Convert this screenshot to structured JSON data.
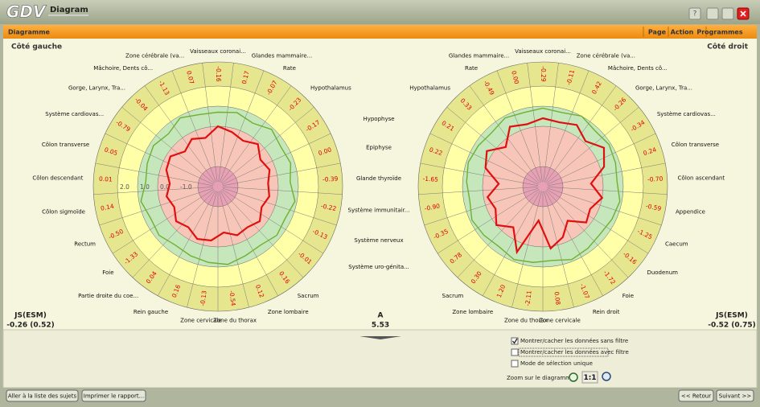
{
  "window": {
    "logo": "GDV",
    "title": "Diagram"
  },
  "menu": {
    "section": "Diagramme",
    "items": [
      "Page",
      "Action",
      "Programmes"
    ]
  },
  "series_colors": {
    "red": "#e01010",
    "green": "#70b030"
  },
  "charts": [
    {
      "title": "Côté gauche",
      "rlim": [
        -3,
        2
      ],
      "rticks": [
        {
          "value": 2,
          "label": "2.0"
        },
        {
          "value": 1,
          "label": "1.0"
        },
        {
          "value": 0,
          "label": "0.0"
        },
        {
          "value": -1,
          "label": "-1.0"
        }
      ],
      "stat_name": "JS(ESM)",
      "stat": "-0.26 (0.52)",
      "segments": [
        {
          "label": "Vaisseaux coronai...",
          "value": "-0.16",
          "red": 0.0,
          "green": 0.7
        },
        {
          "label": "Glandes mammaire...",
          "value": "0.17",
          "red": -0.2,
          "green": 0.8
        },
        {
          "label": "Rate",
          "value": "-0.07",
          "red": -0.4,
          "green": 0.6
        },
        {
          "label": "Hypothalamus",
          "value": "-0.23",
          "red": -0.1,
          "green": 0.9
        },
        {
          "label": "Hypophyse",
          "value": "-0.17",
          "red": -0.5,
          "green": 0.7
        },
        {
          "label": "Epiphyse",
          "value": "0.00",
          "red": -0.3,
          "green": 0.8
        },
        {
          "label": "Glande thyroïde",
          "value": "-0.39",
          "red": -0.5,
          "green": 0.6
        },
        {
          "label": "Système immunitair...",
          "value": "-0.22",
          "red": -0.4,
          "green": 0.9
        },
        {
          "label": "Système nerveux",
          "value": "-0.13",
          "red": -0.6,
          "green": 0.7
        },
        {
          "label": "Système uro-génita...",
          "value": "-0.01",
          "red": -0.3,
          "green": 0.8
        },
        {
          "label": "Sacrum",
          "value": "0.16",
          "red": -0.5,
          "green": 0.6
        },
        {
          "label": "Zone lombaire",
          "value": "0.12",
          "red": -0.4,
          "green": 0.7
        },
        {
          "label": "Zone du thorax",
          "value": "-0.54",
          "red": -0.7,
          "green": 0.9
        },
        {
          "label": "Zone cervicale",
          "value": "-0.13",
          "red": -0.3,
          "green": 0.8
        },
        {
          "label": "Rein gauche",
          "value": "0.16",
          "red": -0.2,
          "green": 0.7
        },
        {
          "label": "Partie droite du coe...",
          "value": "0.04",
          "red": -0.5,
          "green": 0.6
        },
        {
          "label": "Foie",
          "value": "-1.33",
          "red": -0.3,
          "green": 0.8
        },
        {
          "label": "Rectum",
          "value": "-0.50",
          "red": -0.6,
          "green": 0.7
        },
        {
          "label": "Côlon sigmoïde",
          "value": "0.14",
          "red": -0.4,
          "green": 0.9
        },
        {
          "label": "Côlon descendant",
          "value": "0.01",
          "red": -0.6,
          "green": 0.6
        },
        {
          "label": "Côlon transverse",
          "value": "0.05",
          "red": -0.3,
          "green": 0.7
        },
        {
          "label": "Système cardiovas...",
          "value": "-0.79",
          "red": -0.2,
          "green": 0.8
        },
        {
          "label": "Gorge, Larynx, Tra...",
          "value": "-0.04",
          "red": -0.6,
          "green": 0.6
        },
        {
          "label": "Mâchoire, Dents cô...",
          "value": "-1.13",
          "red": -0.3,
          "green": 0.9
        },
        {
          "label": "Zone cérébrale (va...",
          "value": "0.07",
          "red": -0.5,
          "green": 0.7
        }
      ]
    },
    {
      "title": "Côté droit",
      "rlim": [
        -3,
        2
      ],
      "stat_name": "JS(ESM)",
      "stat": "-0.52 (0.75)",
      "segments": [
        {
          "label": "Vaisseaux coronai...",
          "value": "-0.29",
          "red": 0.4,
          "green": 0.9
        },
        {
          "label": "Zone cérébrale (va...",
          "value": "-0.11",
          "red": 0.3,
          "green": 0.8
        },
        {
          "label": "Mâchoire, Dents cô...",
          "value": "0.42",
          "red": 0.5,
          "green": 1.0
        },
        {
          "label": "Gorge, Larynx, Tra...",
          "value": "-0.26",
          "red": 0.1,
          "green": 0.8
        },
        {
          "label": "Système cardiovas...",
          "value": "-0.34",
          "red": 0.6,
          "green": 0.9
        },
        {
          "label": "Côlon transverse",
          "value": "0.24",
          "red": 0.2,
          "green": 0.8
        },
        {
          "label": "Côlon ascendant",
          "value": "-0.70",
          "red": -0.6,
          "green": 0.7
        },
        {
          "label": "Appendice",
          "value": "-0.59",
          "red": 0.0,
          "green": 0.9
        },
        {
          "label": "Caecum",
          "value": "-1.25",
          "red": -0.4,
          "green": 0.8
        },
        {
          "label": "Duodenum",
          "value": "-0.16",
          "red": -0.2,
          "green": 0.7
        },
        {
          "label": "Foie",
          "value": "-1.72",
          "red": -0.9,
          "green": 0.8
        },
        {
          "label": "Rein droit",
          "value": "-1.07",
          "red": -0.3,
          "green": 0.9
        },
        {
          "label": "Zone cervicale",
          "value": "0.08",
          "red": 0.1,
          "green": 0.7
        },
        {
          "label": "Zone du thorax",
          "value": "-2.11",
          "red": -1.3,
          "green": 0.8
        },
        {
          "label": "Zone lombaire",
          "value": "1.20",
          "red": 0.5,
          "green": 0.9
        },
        {
          "label": "Sacrum",
          "value": "0.30",
          "red": -0.5,
          "green": 0.7
        },
        {
          "label": null,
          "value": "0.78",
          "red": 0.0,
          "green": 0.8
        },
        {
          "label": null,
          "value": "-0.35",
          "red": -0.4,
          "green": 0.9
        },
        {
          "label": null,
          "value": "-0.90",
          "red": -0.2,
          "green": 0.7
        },
        {
          "label": null,
          "value": "-1.65",
          "red": -0.8,
          "green": 0.8
        },
        {
          "label": null,
          "value": "0.22",
          "red": 0.0,
          "green": 0.9
        },
        {
          "label": null,
          "value": "0.21",
          "red": 0.3,
          "green": 0.8
        },
        {
          "label": "Hypothalamus",
          "value": "0.33",
          "red": -0.3,
          "green": 0.7
        },
        {
          "label": "Rate",
          "value": "-0.49",
          "red": 0.4,
          "green": 0.9
        },
        {
          "label": "Glandes mammaire...",
          "value": "0.00",
          "red": 0.2,
          "green": 0.8
        }
      ]
    }
  ],
  "center_stat": {
    "name": "A",
    "value": "5.53"
  },
  "options": [
    {
      "label": "Montrer/cacher les données sans filtre",
      "checked": true
    },
    {
      "label": "Montrer/cacher les données avec filtre",
      "checked": false
    },
    {
      "label": "Mode de sélection unique",
      "checked": false
    }
  ],
  "zoom": {
    "label": "Zoom sur le diagramme",
    "reset": "1:1"
  },
  "buttons_left": [
    "Aller à la liste des sujets",
    "Imprimer le rapport..."
  ],
  "buttons_right": [
    "<< Retour",
    "Suivant >>"
  ]
}
